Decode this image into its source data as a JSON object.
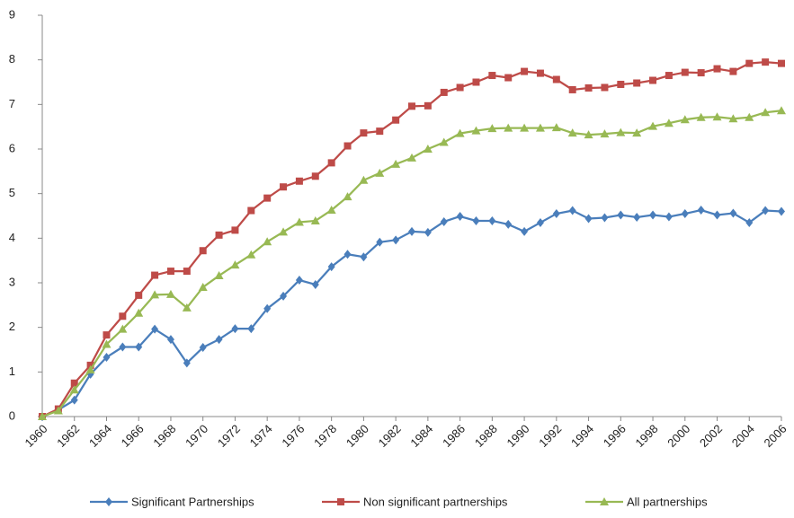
{
  "chart_data": {
    "type": "line",
    "x": [
      1960,
      1961,
      1962,
      1963,
      1964,
      1965,
      1966,
      1967,
      1968,
      1969,
      1970,
      1971,
      1972,
      1973,
      1974,
      1975,
      1976,
      1977,
      1978,
      1979,
      1980,
      1981,
      1982,
      1983,
      1984,
      1985,
      1986,
      1987,
      1988,
      1989,
      1990,
      1991,
      1992,
      1993,
      1994,
      1995,
      1996,
      1997,
      1998,
      1999,
      2000,
      2001,
      2002,
      2003,
      2004,
      2005,
      2006
    ],
    "xlim": [
      1960,
      2006
    ],
    "xticks": [
      1960,
      1962,
      1964,
      1966,
      1968,
      1970,
      1972,
      1974,
      1976,
      1978,
      1980,
      1982,
      1984,
      1986,
      1988,
      1990,
      1992,
      1994,
      1996,
      1998,
      2000,
      2002,
      2004,
      2006
    ],
    "ylim": [
      0,
      9
    ],
    "yticks": [
      0,
      1,
      2,
      3,
      4,
      5,
      6,
      7,
      8,
      9
    ],
    "legend": "bottom",
    "series": [
      {
        "name": "Significant Partnerships",
        "color": "#4a7ebb",
        "marker": "diamond",
        "values": [
          0,
          0.15,
          0.37,
          0.95,
          1.33,
          1.56,
          1.56,
          1.96,
          1.73,
          1.2,
          1.55,
          1.73,
          1.97,
          1.97,
          2.42,
          2.7,
          3.06,
          2.96,
          3.36,
          3.64,
          3.58,
          3.91,
          3.96,
          4.15,
          4.13,
          4.37,
          4.49,
          4.39,
          4.39,
          4.31,
          4.15,
          4.35,
          4.55,
          4.62,
          4.44,
          4.46,
          4.52,
          4.47,
          4.52,
          4.48,
          4.55,
          4.63,
          4.52,
          4.56,
          4.35,
          4.62,
          4.6
        ]
      },
      {
        "name": "Non significant partnerships",
        "color": "#be4b48",
        "marker": "square",
        "values": [
          0,
          0.17,
          0.75,
          1.15,
          1.83,
          2.25,
          2.72,
          3.17,
          3.26,
          3.26,
          3.72,
          4.07,
          4.18,
          4.62,
          4.9,
          5.15,
          5.28,
          5.39,
          5.69,
          6.07,
          6.36,
          6.4,
          6.65,
          6.96,
          6.97,
          7.27,
          7.38,
          7.5,
          7.65,
          7.6,
          7.74,
          7.7,
          7.56,
          7.33,
          7.37,
          7.38,
          7.45,
          7.48,
          7.54,
          7.65,
          7.72,
          7.71,
          7.8,
          7.74,
          7.92,
          7.95,
          7.92
        ]
      },
      {
        "name": "All partnerships",
        "color": "#98b954",
        "marker": "triangle",
        "values": [
          0,
          0.13,
          0.6,
          1.05,
          1.62,
          1.96,
          2.32,
          2.73,
          2.74,
          2.44,
          2.9,
          3.16,
          3.4,
          3.63,
          3.92,
          4.14,
          4.36,
          4.39,
          4.63,
          4.93,
          5.3,
          5.46,
          5.66,
          5.8,
          6.0,
          6.15,
          6.35,
          6.41,
          6.46,
          6.47,
          6.47,
          6.47,
          6.48,
          6.36,
          6.32,
          6.34,
          6.37,
          6.36,
          6.51,
          6.58,
          6.66,
          6.71,
          6.72,
          6.68,
          6.71,
          6.82,
          6.86
        ]
      }
    ]
  }
}
